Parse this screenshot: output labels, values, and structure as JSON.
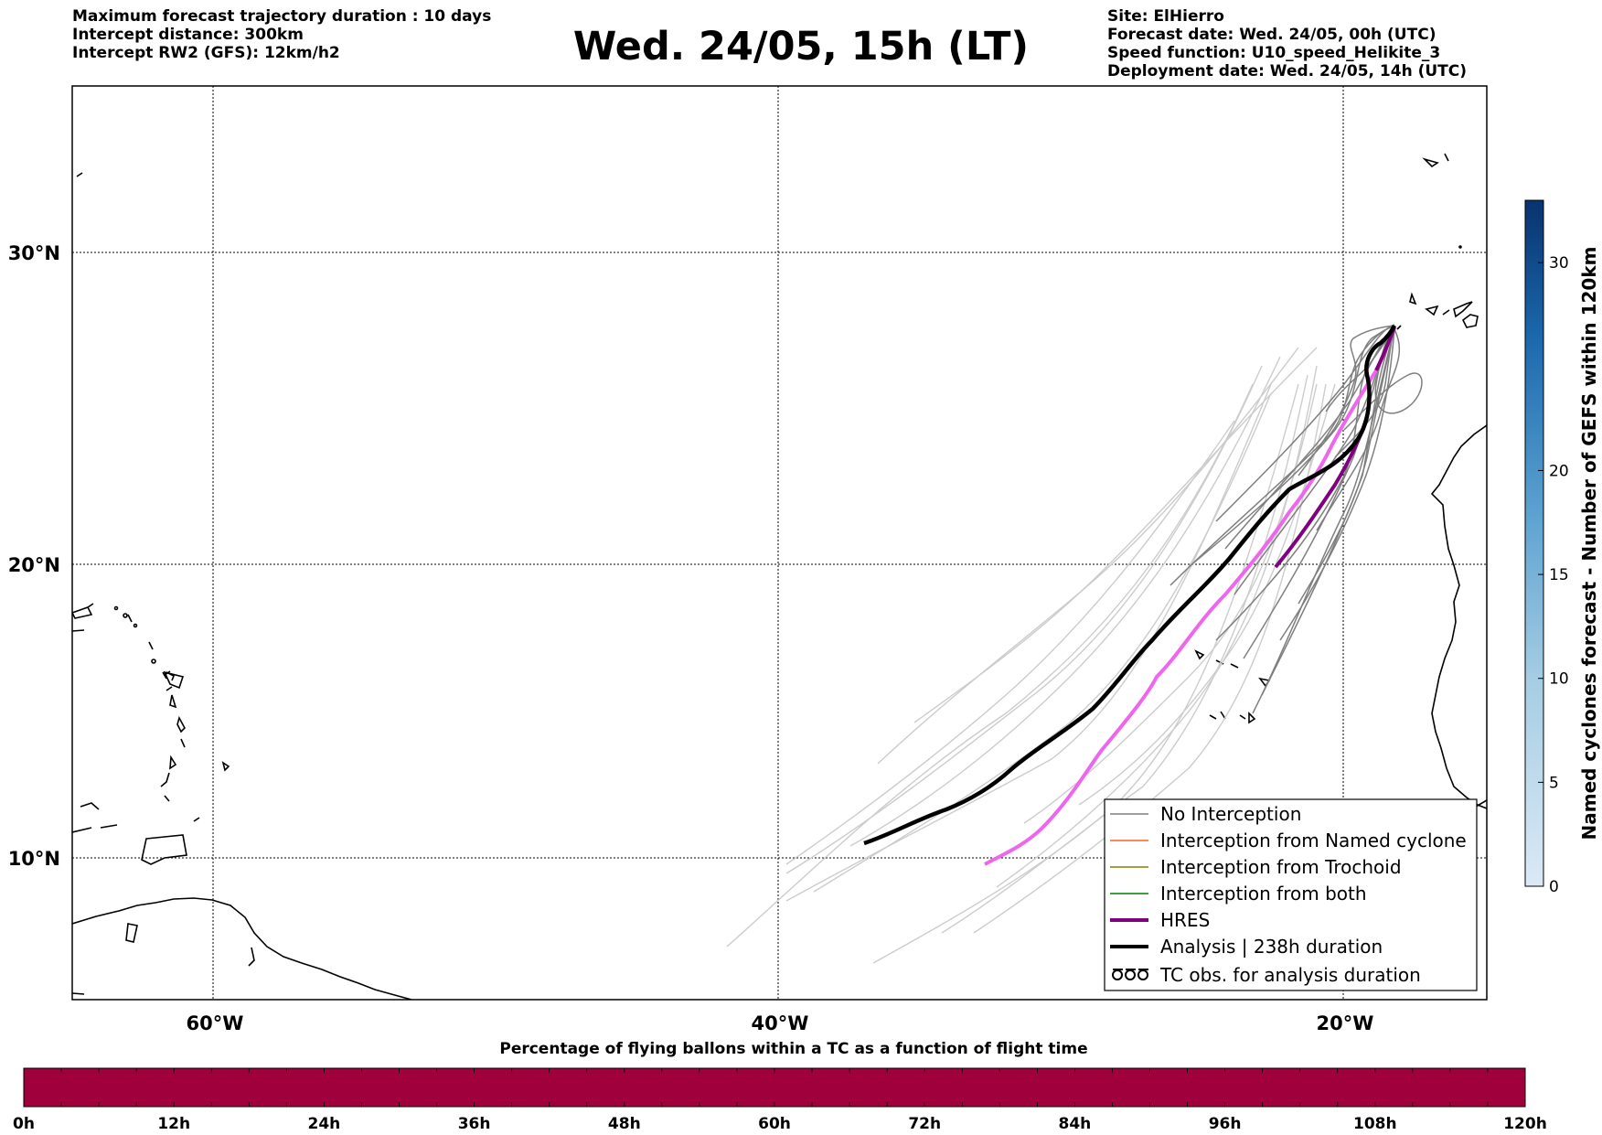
{
  "header": {
    "left_lines": [
      "Maximum forecast trajectory duration : 10 days",
      "Intercept distance: 300km",
      "Intercept RW2 (GFS):  12km/h2"
    ],
    "title": "Wed. 24/05, 15h (LT)",
    "right_lines": [
      "Site: ElHierro",
      "Forecast date: Wed. 24/05, 00h (UTC)",
      "Speed function: U10_speed_Helikite_3",
      "Deployment date: Wed. 24/05, 14h (UTC)"
    ]
  },
  "map": {
    "lon_range": [
      -65,
      -15
    ],
    "lat_range": [
      5,
      35
    ],
    "lat_labels": [
      "30°N",
      "20°N",
      "10°N"
    ],
    "lon_labels": [
      "60°W",
      "40°W",
      "20°W"
    ],
    "colors": {
      "coastline": "#000000",
      "no_interception": "#7f7f7f",
      "ensemble_faint": "#cccccc",
      "named_cyclone": "#ff6022",
      "trochoid": "#808000",
      "both": "#008000",
      "hres": "#800080",
      "hres_extension": "#ee66ee",
      "analysis": "#000000"
    }
  },
  "legend": {
    "items": [
      {
        "label": "No Interception",
        "color": "#7f7f7f",
        "style": "thin"
      },
      {
        "label": "Interception from Named cyclone",
        "color": "#ff6022",
        "style": "thin"
      },
      {
        "label": "Interception from Trochoid",
        "color": "#808000",
        "style": "thin"
      },
      {
        "label": "Interception from both",
        "color": "#008000",
        "style": "thin"
      },
      {
        "label": "HRES",
        "color": "#800080",
        "style": "thick"
      },
      {
        "label": "Analysis | 238h duration",
        "color": "#000000",
        "style": "thick"
      },
      {
        "label": "TC obs. for analysis duration",
        "color": "#000000",
        "style": "symbol"
      }
    ]
  },
  "colorbar": {
    "title": "Named cyclones forecast - Number of GEFS within 120km",
    "ticks": [
      "0",
      "5",
      "10",
      "15",
      "20",
      "30"
    ],
    "range": [
      0,
      33
    ]
  },
  "flight_bar": {
    "title": "Percentage of flying ballons within a TC as a function of flight time",
    "fill_color": "#a0003c",
    "ticks": [
      "0h",
      "12h",
      "24h",
      "36h",
      "48h",
      "60h",
      "72h",
      "84h",
      "96h",
      "108h",
      "120h"
    ]
  }
}
